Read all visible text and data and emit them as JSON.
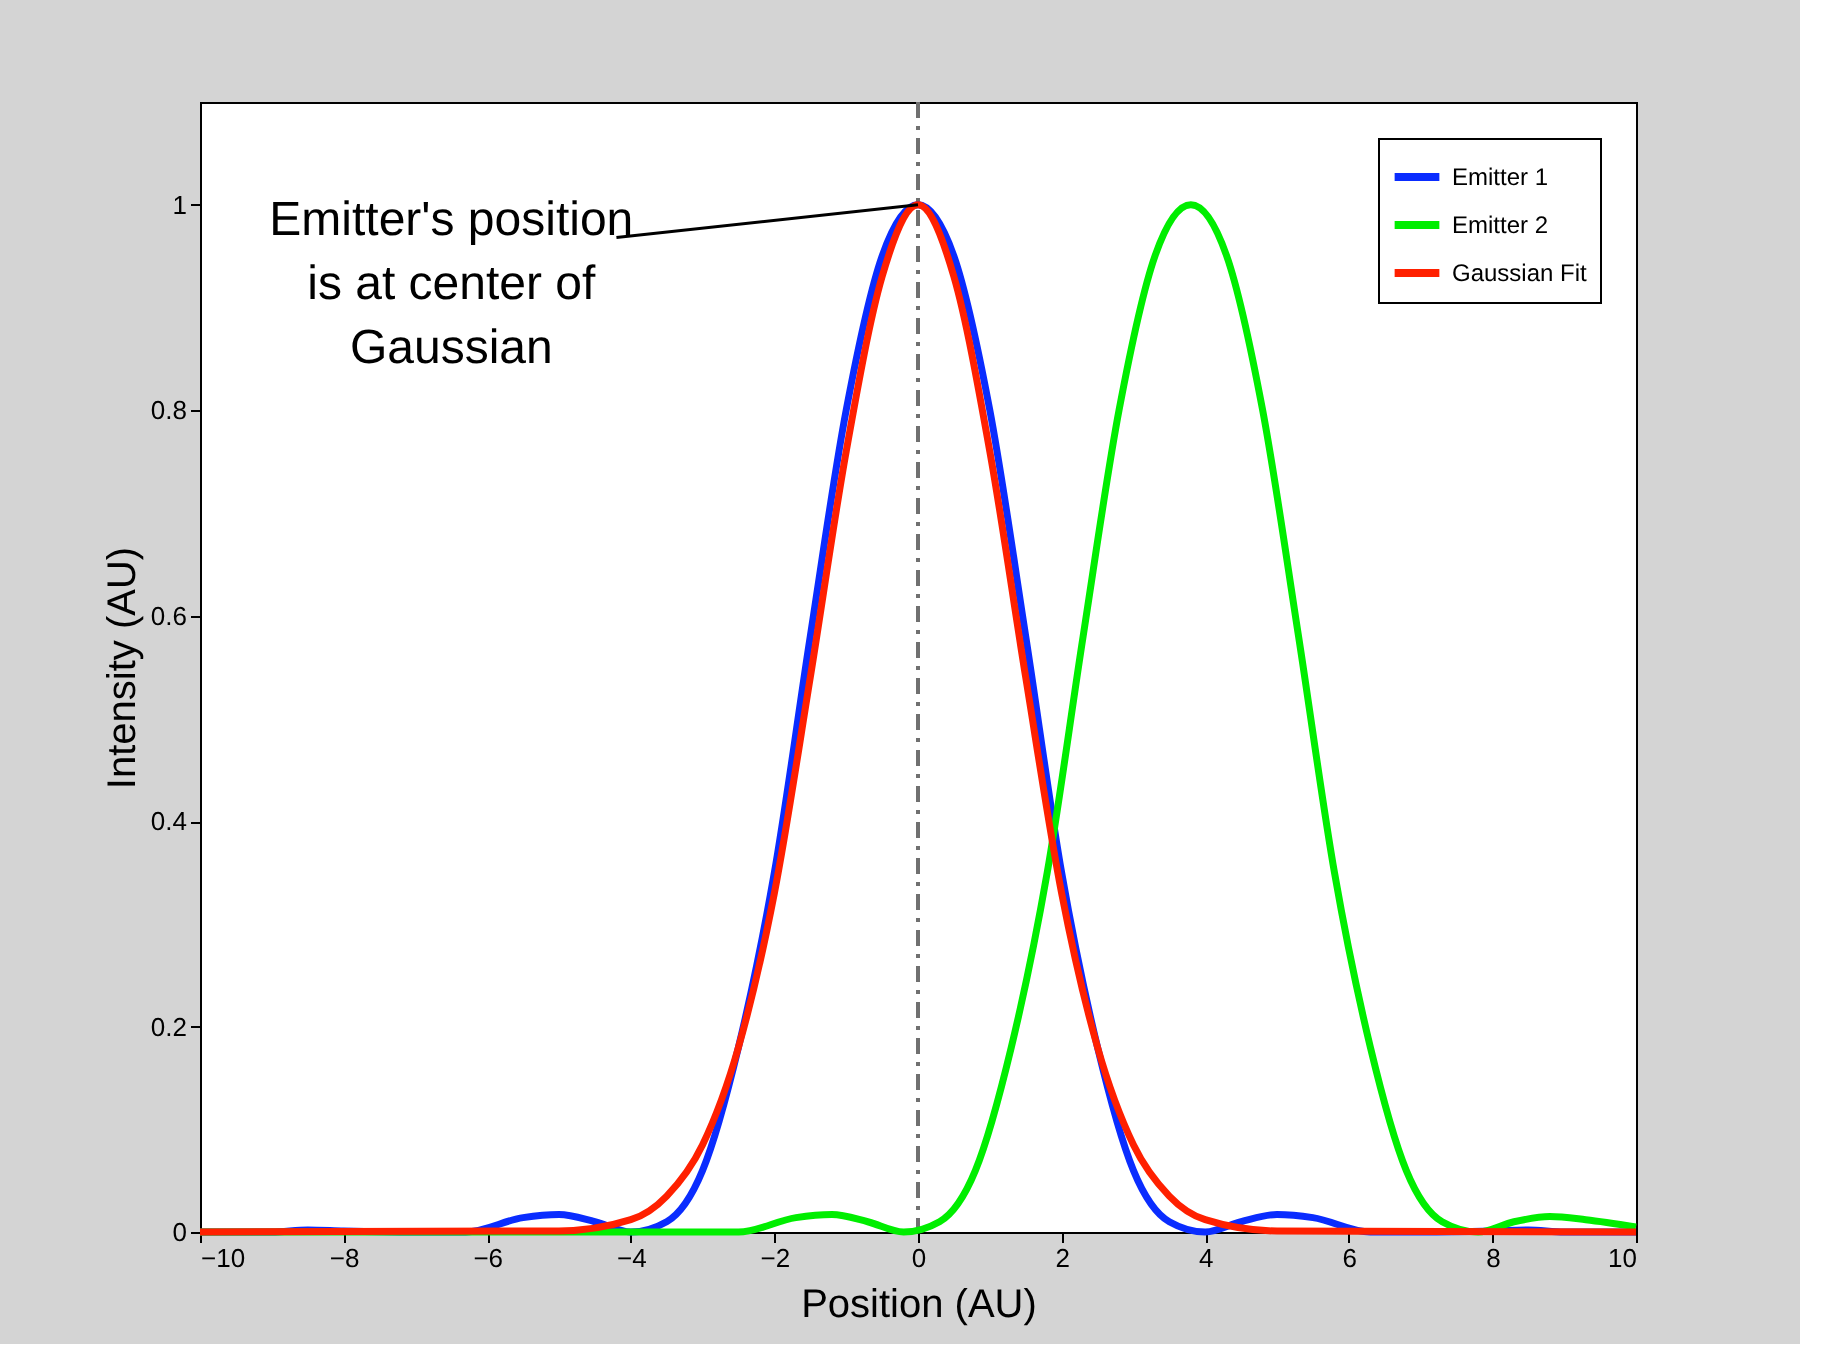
{
  "chart_data": {
    "type": "line",
    "xlabel": "Position (AU)",
    "ylabel": "Intensity (AU)",
    "xlim": [
      -10,
      10
    ],
    "xticks": [
      -10,
      -8,
      -6,
      -4,
      -2,
      0,
      2,
      4,
      6,
      8,
      10
    ],
    "ylim": [
      0,
      1.1
    ],
    "yticks": [
      0,
      0.2,
      0.4,
      0.6,
      0.8,
      1
    ],
    "grid": false,
    "legend": "top right",
    "line_style": "solid",
    "marker": "none",
    "series": [
      {
        "name": "Emitter 1",
        "color": "#0a2cff",
        "x": [
          -10,
          -9,
          -8.5,
          -8,
          -7,
          -6.3,
          -5.5,
          -5,
          -4.5,
          -4,
          -3.5,
          -3,
          -2.5,
          -2,
          -1.5,
          -1,
          -0.5,
          0,
          0.5,
          1,
          1.5,
          2,
          2.5,
          3,
          3.5,
          4,
          4.5,
          5,
          5.5,
          6.3,
          7,
          8,
          8.5,
          9,
          10
        ],
        "values": [
          0,
          0,
          0.002,
          0.001,
          0,
          0,
          0.014,
          0.017,
          0.01,
          0,
          0.01,
          0.06,
          0.18,
          0.35,
          0.58,
          0.8,
          0.95,
          1,
          0.95,
          0.8,
          0.58,
          0.35,
          0.18,
          0.06,
          0.01,
          0,
          0.01,
          0.017,
          0.014,
          0,
          0,
          0.001,
          0.002,
          0,
          0
        ]
      },
      {
        "name": "Emitter 2",
        "color": "#00ee00",
        "x": [
          -10,
          -6.3,
          -2.5,
          -1.7,
          -1.2,
          -0.7,
          -0.2,
          0.3,
          0.8,
          1.3,
          1.8,
          2.3,
          2.8,
          3.3,
          3.8,
          4.3,
          4.8,
          5.3,
          5.8,
          6.3,
          6.8,
          7.3,
          7.8,
          8.3,
          8.8,
          9.3,
          10
        ],
        "values": [
          0,
          0,
          0,
          0.014,
          0.017,
          0.01,
          0,
          0.01,
          0.06,
          0.18,
          0.35,
          0.58,
          0.8,
          0.95,
          1,
          0.95,
          0.8,
          0.58,
          0.35,
          0.18,
          0.06,
          0.01,
          0,
          0.01,
          0.015,
          0.012,
          0.005
        ]
      },
      {
        "name": "Gaussian Fit",
        "color": "#ff2000",
        "x": [
          -10,
          -5,
          -4,
          -3.5,
          -3,
          -2.5,
          -2,
          -1.5,
          -1,
          -0.5,
          0,
          0.5,
          1,
          1.5,
          2,
          2.5,
          3,
          3.5,
          4,
          5,
          10
        ],
        "values": [
          0,
          0.001,
          0.012,
          0.035,
          0.085,
          0.18,
          0.33,
          0.54,
          0.76,
          0.93,
          1,
          0.93,
          0.76,
          0.54,
          0.33,
          0.18,
          0.085,
          0.035,
          0.012,
          0.001,
          0
        ]
      }
    ],
    "ref_lines": [
      {
        "axis": "x",
        "value": 0,
        "color": "#707070",
        "line_style": "dashdot"
      }
    ],
    "annotations": [
      {
        "text": "Emitter's position\nis at center of\nGaussian",
        "x": 0,
        "y": 1
      }
    ]
  }
}
